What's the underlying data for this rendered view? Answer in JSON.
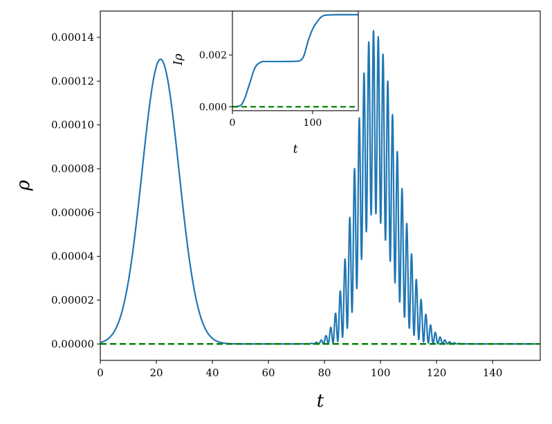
{
  "chart_data": [
    {
      "type": "line",
      "panel": "main",
      "xlabel": "t",
      "ylabel": "ρ",
      "xlim": [
        0,
        157
      ],
      "ylim": [
        -7.5e-06,
        0.000152
      ],
      "x_ticks": [
        0,
        20,
        40,
        60,
        80,
        100,
        120,
        140
      ],
      "x_tick_labels": [
        "0",
        "20",
        "40",
        "60",
        "80",
        "100",
        "120",
        "140"
      ],
      "y_ticks": [
        0,
        2e-05,
        4e-05,
        6e-05,
        8e-05,
        0.0001,
        0.00012,
        0.00014
      ],
      "y_tick_labels": [
        "0.00000",
        "0.00002",
        "0.00004",
        "0.00006",
        "0.00008",
        "0.00010",
        "0.00012",
        "0.00014"
      ],
      "grid": false,
      "legend": "none",
      "series": [
        {
          "style": "solid",
          "color": "#1f77b4",
          "description_points": {
            "x": [
              0,
              5,
              10,
              15,
              18,
              21.5,
              25,
              28,
              32,
              36,
              40,
              45,
              50,
              60,
              70,
              75,
              78,
              82,
              86,
              90,
              95,
              98,
              100,
              104,
              108,
              112,
              116,
              120,
              125,
              130,
              140,
              150,
              157
            ],
            "y": [
              0,
              3e-06,
              2e-05,
              7.5e-05,
              0.000115,
              0.00013,
              0.000112,
              8e-05,
              3.6e-05,
              1.2e-05,
              2e-06,
              2e-07,
              0,
              0,
              0,
              3e-07,
              2e-06,
              1.8e-05,
              5e-05,
              9.8e-05,
              0.000134,
              0.000143,
              0.00014,
              0.000115,
              7.8e-05,
              5e-05,
              3.2e-05,
              1.8e-05,
              9e-06,
              4e-06,
              7e-07,
              1e-07,
              0
            ]
          },
          "features": {
            "peak1": {
              "center": 21.5,
              "height": 0.00013,
              "width": 6.6
            },
            "peak2_envelope": {
              "center": 97.5,
              "max": 0.000143,
              "min_at_center": 6e-05
            },
            "oscillation_period": 1.7
          }
        },
        {
          "style": "dashed",
          "color": "#008000",
          "x": [
            0,
            157
          ],
          "y": [
            0,
            0
          ]
        }
      ]
    },
    {
      "type": "line",
      "panel": "inset",
      "xlabel": "t",
      "ylabel": "Iρ",
      "xlim": [
        0,
        157
      ],
      "ylim": [
        -0.00015,
        0.0037
      ],
      "x_ticks": [
        0,
        100
      ],
      "x_tick_labels": [
        "0",
        "100"
      ],
      "y_ticks": [
        0,
        0.002
      ],
      "y_tick_labels": [
        "0.000",
        "0.002"
      ],
      "grid": false,
      "legend": "none",
      "series": [
        {
          "style": "solid",
          "color": "#1f77b4",
          "x": [
            0,
            10,
            15,
            21.5,
            28,
            35,
            40,
            60,
            80,
            88,
            95,
            100,
            106,
            112,
            120,
            140,
            157
          ],
          "y": [
            0,
            5e-05,
            0.0003,
            0.0009,
            0.0015,
            0.00172,
            0.00175,
            0.00175,
            0.00176,
            0.0019,
            0.0026,
            0.003,
            0.0033,
            0.0035,
            0.00355,
            0.00356,
            0.00356
          ]
        },
        {
          "style": "dashed",
          "color": "#008000",
          "x": [
            0,
            157
          ],
          "y": [
            0,
            0
          ]
        }
      ]
    }
  ]
}
